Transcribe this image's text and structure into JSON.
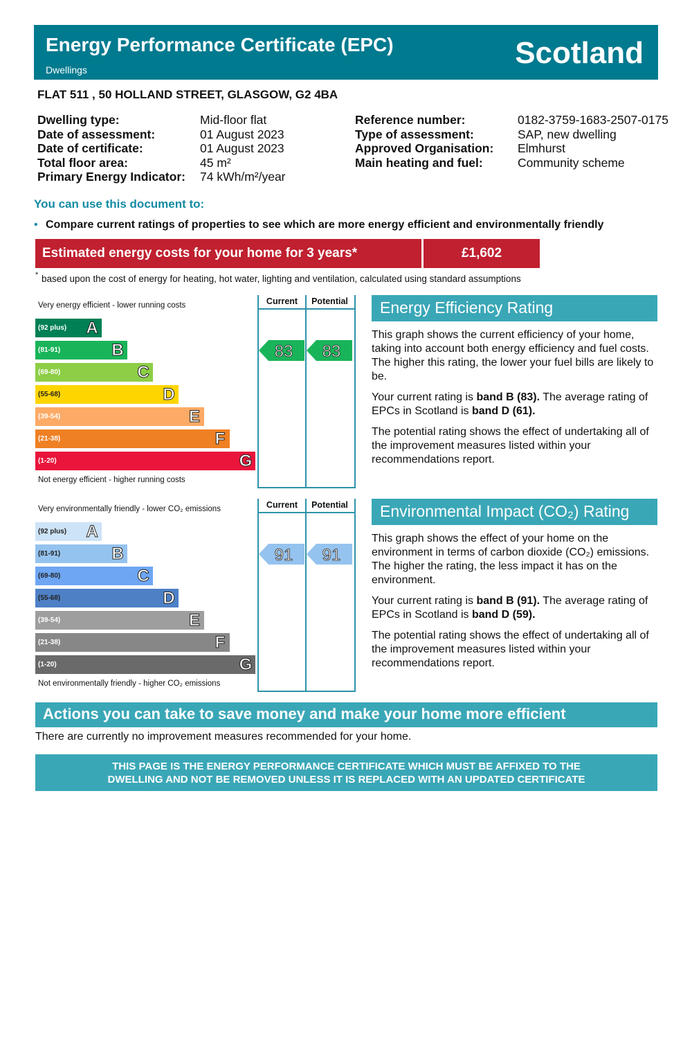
{
  "header": {
    "title": "Energy Performance Certificate (EPC)",
    "subtitle": "Dwellings",
    "region": "Scotland"
  },
  "address": "FLAT 511 , 50 HOLLAND STREET, GLASGOW, G2 4BA",
  "details_left": [
    {
      "label": "Dwelling type:",
      "value": "Mid-floor flat"
    },
    {
      "label": "Date of assessment:",
      "value": "01 August 2023"
    },
    {
      "label": "Date of certificate:",
      "value": "01 August 2023"
    },
    {
      "label": "Total floor area:",
      "value": "45 m²"
    },
    {
      "label": "Primary Energy Indicator:",
      "value": "74 kWh/m²/year"
    }
  ],
  "details_right": [
    {
      "label": "Reference number:",
      "value": "0182-3759-1683-2507-0175"
    },
    {
      "label": "Type of assessment:",
      "value": "SAP, new dwelling"
    },
    {
      "label": "Approved Organisation:",
      "value": "Elmhurst"
    },
    {
      "label": "Main heating and fuel:",
      "value": "Community scheme"
    }
  ],
  "use_heading": "You can use this document to:",
  "use_items": [
    "Compare current ratings of properties to see which are more energy efficient and environmentally friendly"
  ],
  "costs": {
    "label": "Estimated energy costs for your home for 3 years*",
    "value": "£1,602",
    "footnote_mark": "*",
    "footnote": "based upon the cost of energy for heating, hot water, lighting and ventilation, calculated using standard assumptions"
  },
  "energy_chart": {
    "top_label": "Very energy efficient - lower running costs",
    "bottom_label": "Not energy efficient - higher running costs",
    "col_current": "Current",
    "col_potential": "Potential",
    "bands": [
      {
        "range": "(92 plus)",
        "letter": "A",
        "color": "#008054"
      },
      {
        "range": "(81-91)",
        "letter": "B",
        "color": "#19b459"
      },
      {
        "range": "(69-80)",
        "letter": "C",
        "color": "#8dce46"
      },
      {
        "range": "(55-68)",
        "letter": "D",
        "color": "#ffd500"
      },
      {
        "range": "(39-54)",
        "letter": "E",
        "color": "#fcaa65"
      },
      {
        "range": "(21-38)",
        "letter": "F",
        "color": "#ef8023"
      },
      {
        "range": "(1-20)",
        "letter": "G",
        "color": "#e9153b"
      }
    ],
    "current": 83,
    "potential": 83
  },
  "energy_text": {
    "heading": "Energy Efficiency Rating",
    "paragraphs": [
      [
        {
          "text": "This graph shows the current efficiency of your home, taking into account both energy efficiency and fuel costs. The higher this rating, the lower your fuel bills are likely to be.",
          "bold": false
        }
      ],
      [
        {
          "text": "Your current rating is ",
          "bold": false
        },
        {
          "text": "band B (83).",
          "bold": true
        },
        {
          "text": " The average rating of EPCs in Scotland is ",
          "bold": false
        },
        {
          "text": "band D (61).",
          "bold": true
        }
      ],
      [
        {
          "text": "The potential rating shows the effect of undertaking all of the improvement measures listed within your recommendations report.",
          "bold": false
        }
      ]
    ]
  },
  "env_chart": {
    "top_label": "Very environmentally friendly - lower CO₂ emissions",
    "bottom_label": "Not environmentally friendly - higher CO₂ emissions",
    "col_current": "Current",
    "col_potential": "Potential",
    "bands": [
      {
        "range": "(92 plus)",
        "letter": "A",
        "color": "#cde3f7"
      },
      {
        "range": "(81-91)",
        "letter": "B",
        "color": "#95c3ef"
      },
      {
        "range": "(69-80)",
        "letter": "C",
        "color": "#6ea6f3"
      },
      {
        "range": "(55-68)",
        "letter": "D",
        "color": "#4e80c6"
      },
      {
        "range": "(39-54)",
        "letter": "E",
        "color": "#9e9e9e"
      },
      {
        "range": "(21-38)",
        "letter": "F",
        "color": "#878787"
      },
      {
        "range": "(1-20)",
        "letter": "G",
        "color": "#6a6a6a"
      }
    ],
    "current": 91,
    "potential": 91
  },
  "env_text": {
    "heading": "Environmental Impact (CO₂) Rating",
    "paragraphs": [
      [
        {
          "text": "This graph shows the effect of your home on the environment in terms of carbon dioxide (CO₂) emissions. The higher the rating, the less impact it has on the environment.",
          "bold": false
        }
      ],
      [
        {
          "text": "Your current rating is ",
          "bold": false
        },
        {
          "text": "band B (91).",
          "bold": true
        },
        {
          "text": " The average rating of EPCs in Scotland is ",
          "bold": false
        },
        {
          "text": "band D (59).",
          "bold": true
        }
      ],
      [
        {
          "text": "The potential rating shows the effect of undertaking all of the improvement measures listed within your recommendations report.",
          "bold": false
        }
      ]
    ]
  },
  "actions": {
    "heading": "Actions you can take to save money and make your home more efficient",
    "text": "There are currently no improvement measures recommended for your home."
  },
  "footer": [
    "THIS PAGE IS THE ENERGY PERFORMANCE CERTIFICATE WHICH MUST BE AFFIXED TO THE",
    "DWELLING AND NOT BE REMOVED UNLESS IT IS REPLACED WITH AN UPDATED CERTIFICATE"
  ]
}
